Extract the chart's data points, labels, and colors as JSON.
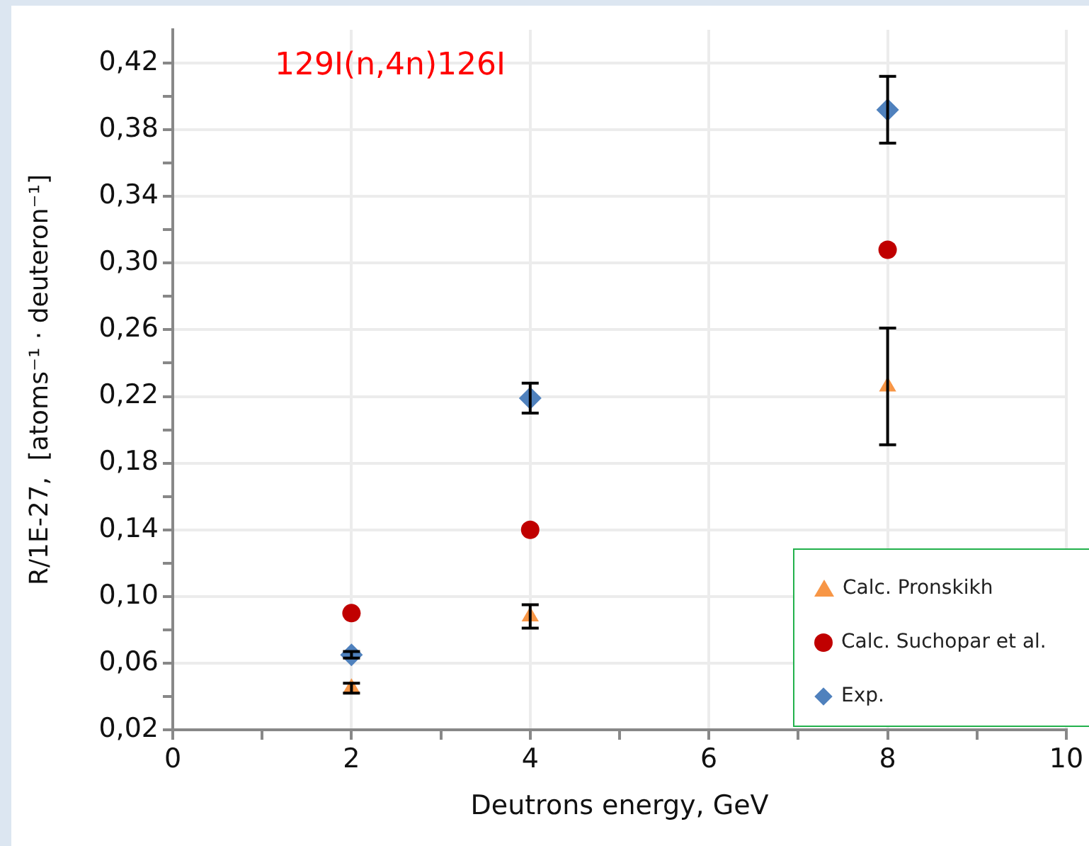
{
  "chart_data": {
    "type": "scatter",
    "annotations": [
      "129I(n,4n)126I"
    ],
    "xlabel": "Deutrons energy, GeV",
    "ylabel": "R/1E-27,  [atoms⁻¹ · deuteron⁻¹]",
    "xlim": [
      0,
      10
    ],
    "xticks": [
      0,
      {
        "value": 1,
        "label": null
      },
      2,
      {
        "value": 3,
        "label": null
      },
      4,
      {
        "value": 5,
        "label": null
      },
      6,
      {
        "value": 7,
        "label": null
      },
      8,
      {
        "value": 9,
        "label": null
      },
      10
    ],
    "ylim": [
      0.02,
      0.44
    ],
    "yticks": [
      {
        "value": 0.02,
        "label": "0,02"
      },
      {
        "value": 0.04,
        "label": null
      },
      {
        "value": 0.06,
        "label": "0,06"
      },
      {
        "value": 0.08,
        "label": null
      },
      {
        "value": 0.1,
        "label": "0,10"
      },
      {
        "value": 0.12,
        "label": null
      },
      {
        "value": 0.14,
        "label": "0,14"
      },
      {
        "value": 0.16,
        "label": null
      },
      {
        "value": 0.18,
        "label": "0,18"
      },
      {
        "value": 0.2,
        "label": null
      },
      {
        "value": 0.22,
        "label": "0,22"
      },
      {
        "value": 0.24,
        "label": null
      },
      {
        "value": 0.26,
        "label": "0,26"
      },
      {
        "value": 0.28,
        "label": null
      },
      {
        "value": 0.3,
        "label": "0,30"
      },
      {
        "value": 0.32,
        "label": null
      },
      {
        "value": 0.34,
        "label": "0,34"
      },
      {
        "value": 0.36,
        "label": null
      },
      {
        "value": 0.38,
        "label": "0,38"
      },
      {
        "value": 0.4,
        "label": null
      },
      {
        "value": 0.42,
        "label": "0,42"
      }
    ],
    "grid": true,
    "legend": "bottom right",
    "series": [
      {
        "name": "Calc. Pronskikh",
        "color": "#f79646",
        "marker": "triangle",
        "x": [
          2,
          4,
          8
        ],
        "values": [
          0.045,
          0.088,
          0.226
        ],
        "errors": [
          0.003,
          0.007,
          0.035
        ]
      },
      {
        "name": "Calc. Suchopar et al.",
        "color": "#c00000",
        "marker": "circle",
        "x": [
          2,
          4,
          8
        ],
        "values": [
          0.09,
          0.14,
          0.308
        ]
      },
      {
        "name": "Exp.",
        "color": "#4f81bd",
        "marker": "diamond",
        "x": [
          2,
          4,
          8
        ],
        "values": [
          0.065,
          0.219,
          0.392
        ],
        "errors": [
          0.002,
          0.009,
          0.02
        ]
      }
    ]
  }
}
